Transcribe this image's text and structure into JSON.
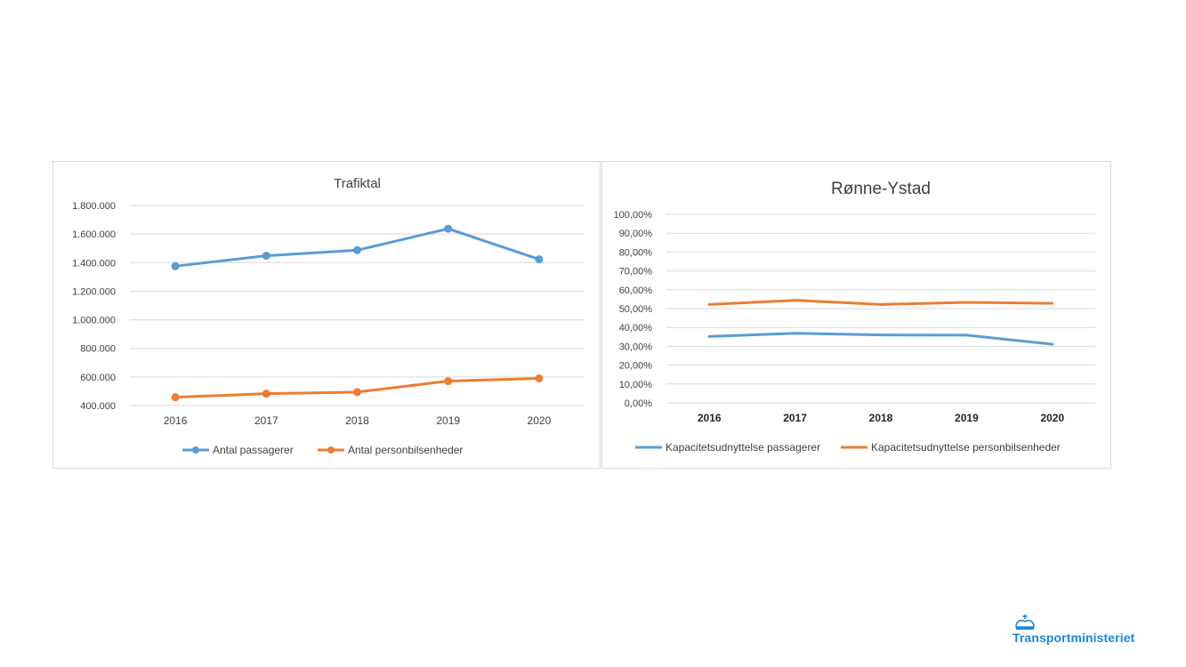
{
  "chart_data": [
    {
      "type": "line",
      "title": "Trafiktal",
      "xlabel": "",
      "ylabel": "",
      "categories": [
        "2016",
        "2017",
        "2018",
        "2019",
        "2020"
      ],
      "ylim": [
        400000,
        1800000
      ],
      "yticks": [
        400000,
        600000,
        800000,
        1000000,
        1200000,
        1400000,
        1600000,
        1800000
      ],
      "ytick_labels": [
        "400.000",
        "600.000",
        "800.000",
        "1.000.000",
        "1.200.000",
        "1.400.000",
        "1.600.000",
        "1.800.000"
      ],
      "grid": true,
      "legend": "bottom",
      "series": [
        {
          "name": "Antal passagerer",
          "color": "#5b9bd5",
          "markers": true,
          "values": [
            1375000,
            1448000,
            1487000,
            1637000,
            1423000
          ]
        },
        {
          "name": "Antal personbilsenheder",
          "color": "#ed7d31",
          "markers": true,
          "values": [
            458000,
            483000,
            494000,
            571000,
            590000
          ]
        }
      ]
    },
    {
      "type": "line",
      "title": "Rønne-Ystad",
      "xlabel": "",
      "ylabel": "",
      "categories": [
        "2016",
        "2017",
        "2018",
        "2019",
        "2020"
      ],
      "ylim": [
        0,
        100
      ],
      "yticks": [
        0,
        10,
        20,
        30,
        40,
        50,
        60,
        70,
        80,
        90,
        100
      ],
      "ytick_labels": [
        "0,00%",
        "10,00%",
        "20,00%",
        "30,00%",
        "40,00%",
        "50,00%",
        "60,00%",
        "70,00%",
        "80,00%",
        "90,00%",
        "100,00%"
      ],
      "grid": true,
      "legend": "bottom",
      "series": [
        {
          "name": "Kapacitetsudnyttelse passagerer",
          "color": "#5b9bd5",
          "markers": false,
          "values": [
            35.2,
            36.9,
            36.0,
            35.9,
            31.1
          ]
        },
        {
          "name": "Kapacitetsudnyttelse personbilsenheder",
          "color": "#ed7d31",
          "markers": false,
          "values": [
            52.2,
            54.4,
            52.2,
            53.3,
            52.8
          ]
        }
      ]
    }
  ],
  "logo": {
    "text": "Transportministeriet",
    "crown_color": "#1e87d6"
  }
}
